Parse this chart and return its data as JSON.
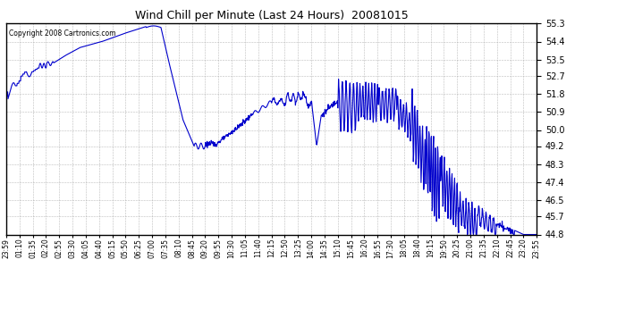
{
  "title": "Wind Chill per Minute (Last 24 Hours)  20081015",
  "copyright": "Copyright 2008 Cartronics.com",
  "line_color": "#0000CC",
  "bg_color": "#ffffff",
  "grid_color": "#aaaaaa",
  "yticks": [
    44.8,
    45.7,
    46.5,
    47.4,
    48.3,
    49.2,
    50.0,
    50.9,
    51.8,
    52.7,
    53.5,
    54.4,
    55.3
  ],
  "ylim": [
    44.8,
    55.3
  ],
  "xtick_labels": [
    "23:59",
    "01:10",
    "01:35",
    "02:20",
    "02:55",
    "03:30",
    "04:05",
    "04:40",
    "05:15",
    "05:50",
    "06:25",
    "07:00",
    "07:35",
    "08:10",
    "08:45",
    "09:20",
    "09:55",
    "10:30",
    "11:05",
    "11:40",
    "12:15",
    "12:50",
    "13:25",
    "14:00",
    "14:35",
    "15:10",
    "15:45",
    "16:20",
    "16:55",
    "17:30",
    "18:05",
    "18:40",
    "19:15",
    "19:50",
    "20:25",
    "21:00",
    "21:35",
    "22:10",
    "22:45",
    "23:20",
    "23:55"
  ],
  "figsize": [
    6.9,
    3.75
  ],
  "dpi": 100
}
